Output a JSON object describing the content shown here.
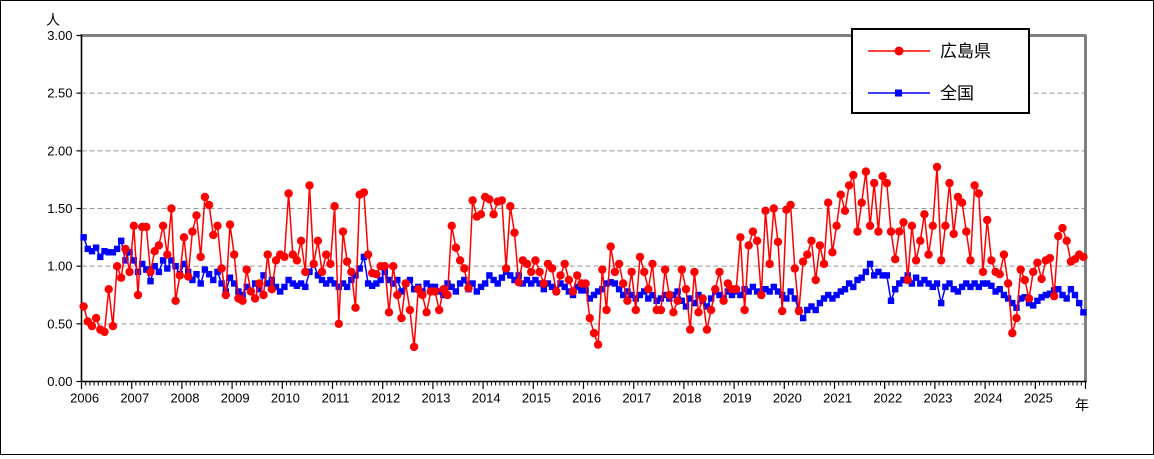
{
  "y_axis": {
    "unit": "人",
    "min": 0,
    "max": 3,
    "step": 0.5,
    "tick_labels": [
      "0.00",
      "0.50",
      "1.00",
      "1.50",
      "2.00",
      "2.50",
      "3.00"
    ]
  },
  "x_axis": {
    "unit": "年",
    "year_labels": [
      "2006",
      "2007",
      "2008",
      "2009",
      "2010",
      "2011",
      "2012",
      "2013",
      "2014",
      "2015",
      "2016",
      "2017",
      "2018",
      "2019",
      "2020",
      "2021",
      "2022",
      "2023",
      "2024",
      "2025"
    ]
  },
  "legend": {
    "items": [
      {
        "label": "広島県",
        "color": "#ff0000",
        "marker": "circle"
      },
      {
        "label": "全国",
        "color": "#0000ff",
        "marker": "square"
      }
    ]
  },
  "colors": {
    "grid": "#999999",
    "frame_shadow": "#808080",
    "axis": "#000000",
    "background": "#ffffff",
    "series_hiroshima": "#ff0000",
    "series_national": "#0000ff"
  },
  "chart_data": {
    "type": "line",
    "title": "",
    "xlabel": "年",
    "ylabel": "人",
    "x_start": "2006-01",
    "x_end": "2025-12",
    "points_per_year": 12,
    "ylim": [
      0,
      3
    ],
    "ytick_step": 0.5,
    "grid": true,
    "legend_position": "top-right",
    "categories_years": [
      2006,
      2007,
      2008,
      2009,
      2010,
      2011,
      2012,
      2013,
      2014,
      2015,
      2016,
      2017,
      2018,
      2019,
      2020,
      2021,
      2022,
      2023,
      2024,
      2025
    ],
    "series": [
      {
        "name": "広島県",
        "color": "#ff0000",
        "marker": "circle",
        "values": [
          0.65,
          0.52,
          0.48,
          0.55,
          0.45,
          0.43,
          0.8,
          0.48,
          1.0,
          0.9,
          1.15,
          0.95,
          1.35,
          0.75,
          1.34,
          1.34,
          0.95,
          1.13,
          1.18,
          1.35,
          1.1,
          1.5,
          0.7,
          0.92,
          1.25,
          0.91,
          1.3,
          1.44,
          1.08,
          1.6,
          1.53,
          1.27,
          1.35,
          0.98,
          0.75,
          1.36,
          1.1,
          0.72,
          0.7,
          0.97,
          0.78,
          0.72,
          0.85,
          0.75,
          1.1,
          0.8,
          1.05,
          1.1,
          1.08,
          1.63,
          1.1,
          1.05,
          1.22,
          0.95,
          1.7,
          1.02,
          1.22,
          0.95,
          1.1,
          1.02,
          1.52,
          0.5,
          1.3,
          1.04,
          0.95,
          0.64,
          1.62,
          1.64,
          1.1,
          0.94,
          0.93,
          1.0,
          1.0,
          0.6,
          1.0,
          0.75,
          0.55,
          0.85,
          0.62,
          0.3,
          0.8,
          0.75,
          0.6,
          0.78,
          0.78,
          0.62,
          0.8,
          0.75,
          1.35,
          1.16,
          1.05,
          0.98,
          0.81,
          1.57,
          1.43,
          1.45,
          1.6,
          1.58,
          1.45,
          1.56,
          1.57,
          0.98,
          1.52,
          1.29,
          0.86,
          1.05,
          1.02,
          0.95,
          1.05,
          0.95,
          0.85,
          1.02,
          0.98,
          0.78,
          0.92,
          1.02,
          0.88,
          0.78,
          0.92,
          0.85,
          0.85,
          0.55,
          0.42,
          0.32,
          0.97,
          0.62,
          1.17,
          0.95,
          1.02,
          0.85,
          0.7,
          0.95,
          0.62,
          1.08,
          0.95,
          0.8,
          1.02,
          0.62,
          0.62,
          0.97,
          0.75,
          0.6,
          0.7,
          0.97,
          0.8,
          0.45,
          0.95,
          0.6,
          0.72,
          0.45,
          0.62,
          0.8,
          0.95,
          0.7,
          0.85,
          0.8,
          0.8,
          1.25,
          0.62,
          1.18,
          1.3,
          1.22,
          0.75,
          1.48,
          1.02,
          1.5,
          1.21,
          0.61,
          1.49,
          1.53,
          0.98,
          0.61,
          1.04,
          1.1,
          1.22,
          0.88,
          1.18,
          1.02,
          1.55,
          1.12,
          1.35,
          1.62,
          1.48,
          1.7,
          1.79,
          1.3,
          1.55,
          1.82,
          1.35,
          1.72,
          1.3,
          1.78,
          1.72,
          1.3,
          1.06,
          1.3,
          1.38,
          0.88,
          1.35,
          1.05,
          1.22,
          1.45,
          1.1,
          1.35,
          1.86,
          1.05,
          1.35,
          1.72,
          1.28,
          1.6,
          1.55,
          1.3,
          1.05,
          1.7,
          1.63,
          0.95,
          1.4,
          1.05,
          0.95,
          0.93,
          1.1,
          0.85,
          0.42,
          0.55,
          0.97,
          0.88,
          0.72,
          0.95,
          1.03,
          0.89,
          1.05,
          1.07,
          0.74,
          1.26,
          1.33,
          1.22,
          1.04,
          1.06,
          1.1,
          1.08
        ]
      },
      {
        "name": "全国",
        "color": "#0000ff",
        "marker": "square",
        "values": [
          1.25,
          1.15,
          1.13,
          1.16,
          1.08,
          1.13,
          1.12,
          1.12,
          1.15,
          1.22,
          1.05,
          1.12,
          1.05,
          0.95,
          1.02,
          0.97,
          0.87,
          1.0,
          0.95,
          1.05,
          0.98,
          1.05,
          1.0,
          0.93,
          1.02,
          0.95,
          0.88,
          0.93,
          0.85,
          0.97,
          0.93,
          0.88,
          0.95,
          0.85,
          0.78,
          0.9,
          0.85,
          0.78,
          0.75,
          0.82,
          0.78,
          0.85,
          0.8,
          0.92,
          0.85,
          0.88,
          0.82,
          0.78,
          0.82,
          0.88,
          0.85,
          0.83,
          0.85,
          0.82,
          0.95,
          1.02,
          0.92,
          0.88,
          0.85,
          0.88,
          0.85,
          0.82,
          0.85,
          0.82,
          0.88,
          0.92,
          0.98,
          1.08,
          0.85,
          0.83,
          0.85,
          0.88,
          0.95,
          0.88,
          0.85,
          0.88,
          0.78,
          0.85,
          0.88,
          0.8,
          0.82,
          0.78,
          0.85,
          0.82,
          0.82,
          0.78,
          0.75,
          0.85,
          0.82,
          0.78,
          0.85,
          0.88,
          0.8,
          0.85,
          0.78,
          0.82,
          0.85,
          0.92,
          0.88,
          0.85,
          0.9,
          0.95,
          0.92,
          0.88,
          0.92,
          0.85,
          0.88,
          0.85,
          0.88,
          0.85,
          0.8,
          0.85,
          0.82,
          0.78,
          0.85,
          0.82,
          0.78,
          0.75,
          0.82,
          0.79,
          0.79,
          0.72,
          0.75,
          0.78,
          0.8,
          0.85,
          0.86,
          0.85,
          0.8,
          0.75,
          0.78,
          0.75,
          0.72,
          0.75,
          0.78,
          0.72,
          0.75,
          0.7,
          0.72,
          0.75,
          0.72,
          0.75,
          0.78,
          0.7,
          0.65,
          0.72,
          0.68,
          0.75,
          0.7,
          0.65,
          0.72,
          0.78,
          0.75,
          0.72,
          0.78,
          0.75,
          0.78,
          0.75,
          0.8,
          0.78,
          0.82,
          0.78,
          0.75,
          0.8,
          0.78,
          0.82,
          0.78,
          0.75,
          0.72,
          0.78,
          0.72,
          0.62,
          0.55,
          0.62,
          0.65,
          0.62,
          0.68,
          0.72,
          0.75,
          0.72,
          0.75,
          0.78,
          0.8,
          0.85,
          0.82,
          0.88,
          0.9,
          0.95,
          1.02,
          0.92,
          0.95,
          0.92,
          0.92,
          0.7,
          0.8,
          0.85,
          0.88,
          0.92,
          0.85,
          0.9,
          0.85,
          0.88,
          0.85,
          0.82,
          0.85,
          0.68,
          0.82,
          0.85,
          0.8,
          0.78,
          0.82,
          0.85,
          0.82,
          0.85,
          0.82,
          0.85,
          0.85,
          0.83,
          0.78,
          0.8,
          0.75,
          0.72,
          0.68,
          0.64,
          0.72,
          0.73,
          0.68,
          0.66,
          0.7,
          0.73,
          0.75,
          0.76,
          0.79,
          0.8,
          0.75,
          0.72,
          0.8,
          0.75,
          0.68,
          0.6
        ]
      }
    ]
  }
}
